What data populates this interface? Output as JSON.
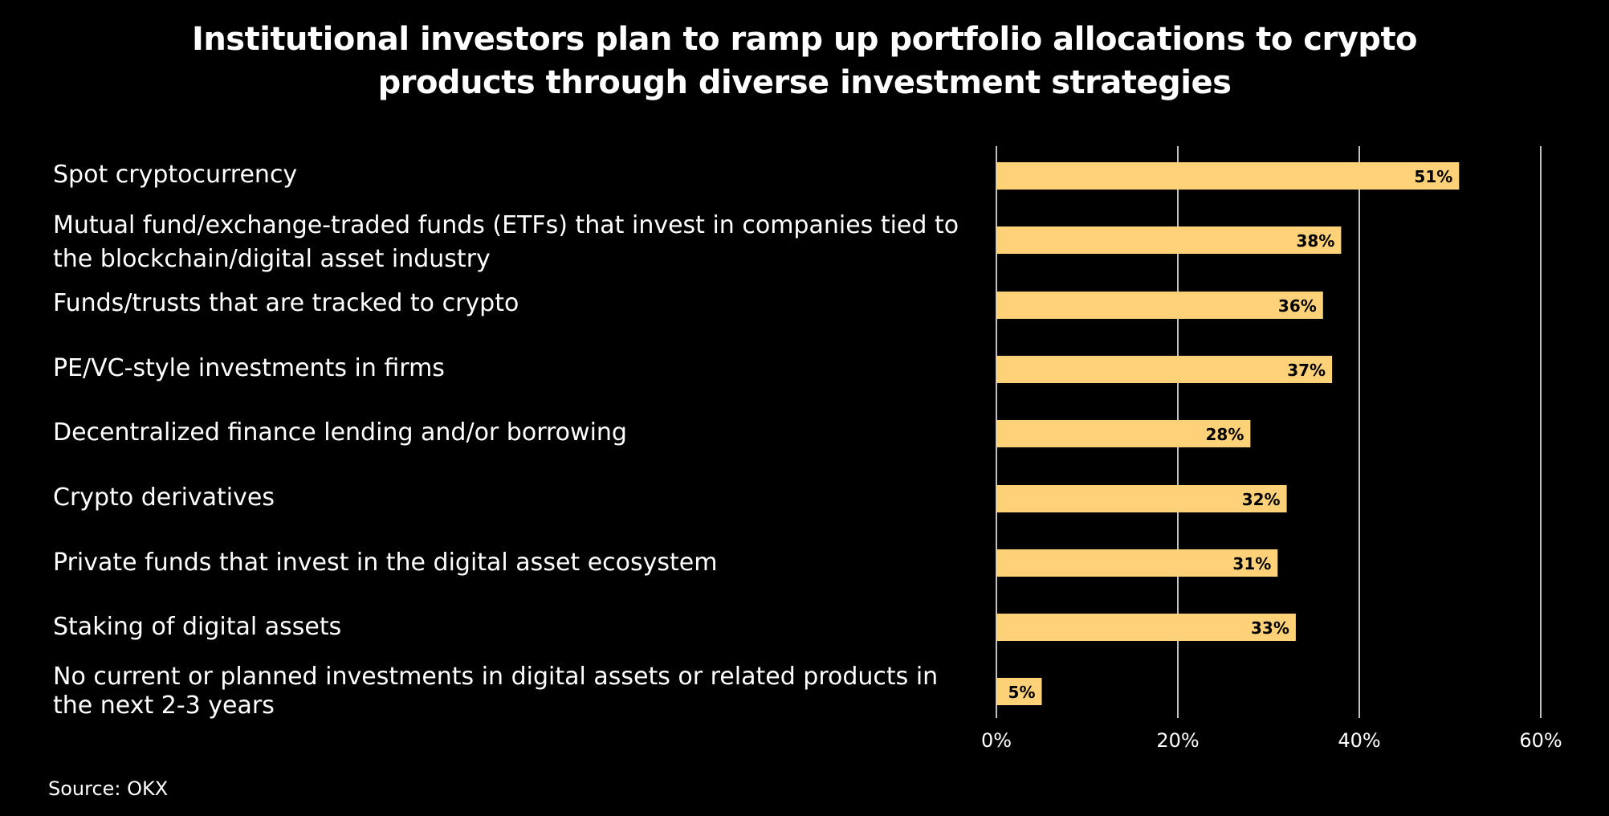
{
  "title_lines": [
    "Institutional investors plan to ramp up portfolio allocations to crypto",
    "products through diverse investment strategies"
  ],
  "source": "Source: OKX",
  "colors": {
    "background": "#000000",
    "bar": "#FFD27A",
    "gridline": "#ffffff",
    "text": "#ffffff",
    "bar_label": "#000000"
  },
  "chart_data": {
    "type": "bar",
    "orientation": "horizontal",
    "title": "Institutional investors plan to ramp up portfolio allocations to crypto products through diverse investment strategies",
    "categories": [
      "Spot cryptocurrency",
      "Mutual fund/exchange-traded funds (ETFs) that invest in companies tied to the blockchain/digital asset industry",
      "Funds/trusts that are tracked to crypto",
      "PE/VC-style investments in firms",
      "Decentralized finance lending and/or borrowing",
      "Crypto derivatives",
      "Private funds that invest in the digital asset ecosystem",
      "Staking of digital assets",
      "No current or planned investments in digital assets or related products in the next 2-3 years"
    ],
    "values": [
      51,
      38,
      36,
      37,
      28,
      32,
      31,
      33,
      5
    ],
    "value_labels": [
      "51%",
      "38%",
      "36%",
      "37%",
      "28%",
      "32%",
      "31%",
      "33%",
      "5%"
    ],
    "xlim": [
      0,
      60
    ],
    "xticks": [
      0,
      20,
      40,
      60
    ],
    "xtick_labels": [
      "0%",
      "20%",
      "40%",
      "60%"
    ],
    "xlabel": "",
    "ylabel": "",
    "grid": true,
    "legend": "none"
  }
}
